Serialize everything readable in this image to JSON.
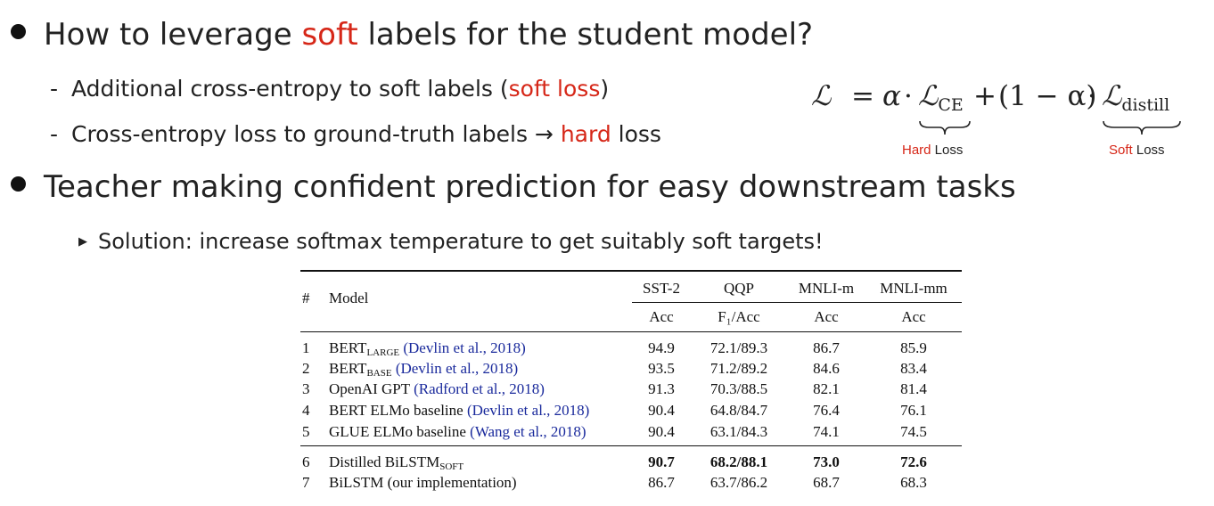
{
  "bullet1": {
    "pre": "How to leverage ",
    "highlight": "soft",
    "post": " labels for the student model?",
    "subs": [
      {
        "pre": "Additional cross-entropy to soft labels (",
        "highlight": "soft loss",
        "post": ")"
      },
      {
        "pre": "Cross-entropy loss to ground-truth labels → ",
        "highlight": "hard",
        "post": " loss"
      }
    ]
  },
  "bullet2": {
    "text": "Teacher making confident prediction for easy downstream tasks",
    "sub": "Solution: increase softmax temperature to get suitably soft targets!"
  },
  "formula": {
    "lhs": "ℒ",
    "eq": "=",
    "alpha": "α",
    "dot": "·",
    "l": "ℒ",
    "ce_sub": "CE",
    "plus": "+",
    "paren": "(1 − α)",
    "distill_sub": "distill",
    "hard_label": {
      "highlight": "Hard",
      "rest": " Loss"
    },
    "soft_label": {
      "highlight": "Soft",
      "rest": " Loss"
    }
  },
  "table": {
    "hash": "#",
    "model": "Model",
    "datasets": [
      "SST-2",
      "QQP",
      "MNLI-m",
      "MNLI-mm"
    ],
    "metrics": [
      "Acc",
      "F₁/Acc",
      "Acc",
      "Acc"
    ],
    "rows": [
      {
        "num": "1",
        "name": "BERT",
        "sub": "LARGE",
        "cite": "(Devlin et al., 2018)",
        "vals": [
          "94.9",
          "72.1/89.3",
          "86.7",
          "85.9"
        ]
      },
      {
        "num": "2",
        "name": "BERT",
        "sub": "BASE",
        "cite": "(Devlin et al., 2018)",
        "vals": [
          "93.5",
          "71.2/89.2",
          "84.6",
          "83.4"
        ]
      },
      {
        "num": "3",
        "name": "OpenAI GPT",
        "sub": "",
        "cite": "(Radford et al., 2018)",
        "vals": [
          "91.3",
          "70.3/88.5",
          "82.1",
          "81.4"
        ]
      },
      {
        "num": "4",
        "name": "BERT ELMo baseline",
        "sub": "",
        "cite": "(Devlin et al., 2018)",
        "vals": [
          "90.4",
          "64.8/84.7",
          "76.4",
          "76.1"
        ]
      },
      {
        "num": "5",
        "name": "GLUE ELMo baseline",
        "sub": "",
        "cite": "(Wang et al., 2018)",
        "vals": [
          "90.4",
          "63.1/84.3",
          "74.1",
          "74.5"
        ]
      },
      {
        "num": "6",
        "name": "Distilled BiLSTM",
        "sub": "SOFT",
        "cite": "",
        "vals": [
          "90.7",
          "68.2/88.1",
          "73.0",
          "72.6"
        ],
        "bold": true
      },
      {
        "num": "7",
        "name": "BiLSTM (our implementation)",
        "sub": "",
        "cite": "",
        "vals": [
          "86.7",
          "63.7/86.2",
          "68.7",
          "68.3"
        ]
      }
    ]
  }
}
